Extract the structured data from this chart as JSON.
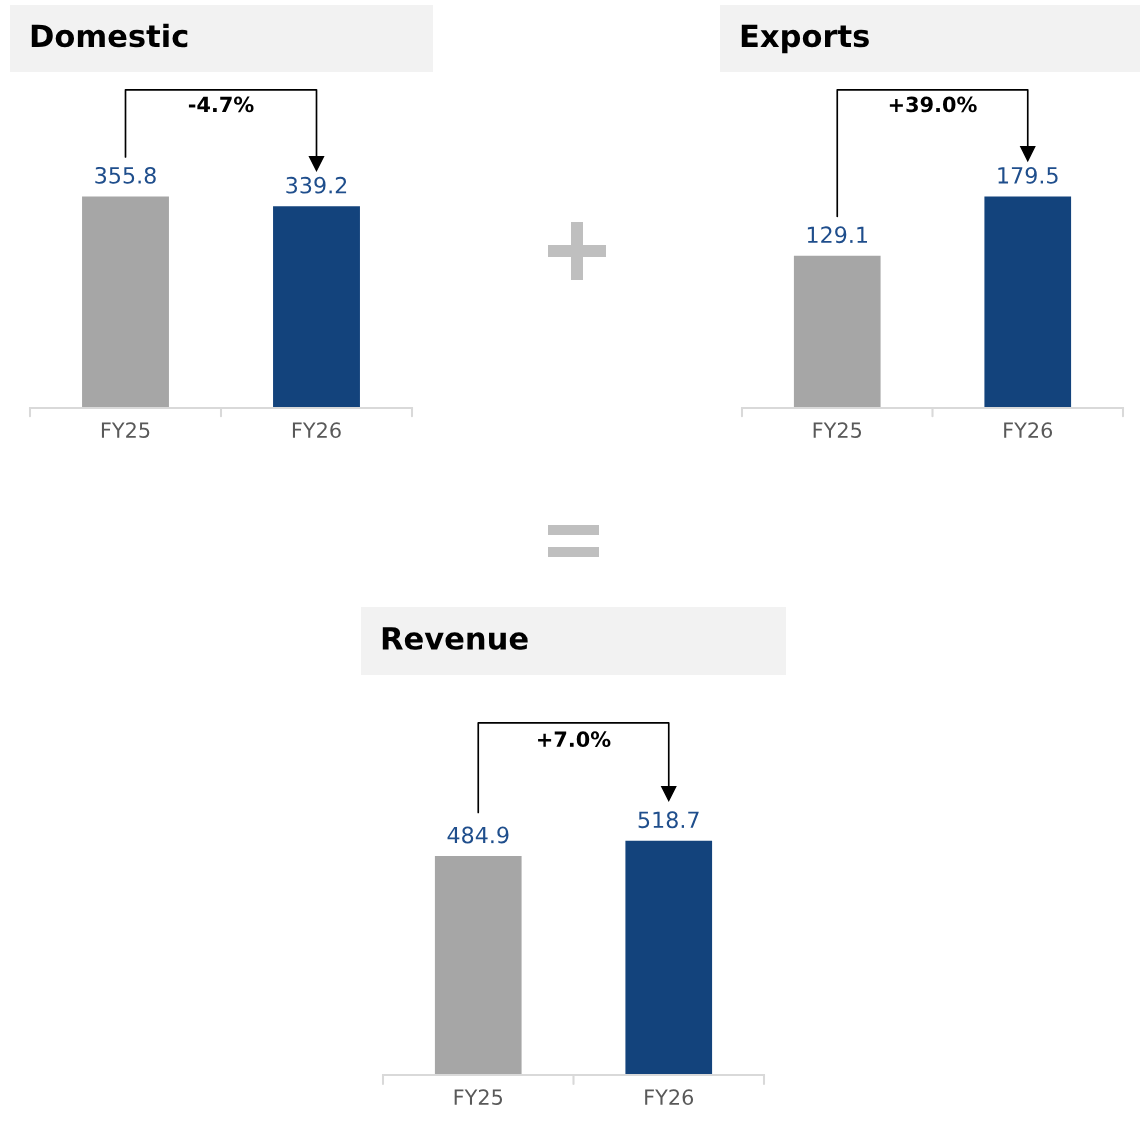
{
  "chart_data": [
    {
      "type": "bar",
      "title": "Domestic",
      "categories": [
        "FY25",
        "FY26"
      ],
      "values": [
        355.8,
        339.2
      ],
      "colors": [
        "#a6a6a6",
        "#13437c"
      ],
      "data_labels": true,
      "annotations": [
        "-4.7%"
      ]
    },
    {
      "type": "bar",
      "title": "Exports",
      "categories": [
        "FY25",
        "FY26"
      ],
      "values": [
        129.1,
        179.5
      ],
      "colors": [
        "#a6a6a6",
        "#13437c"
      ],
      "data_labels": true,
      "annotations": [
        "+39.0%"
      ]
    },
    {
      "type": "bar",
      "title": "Revenue",
      "categories": [
        "FY25",
        "FY26"
      ],
      "values": [
        484.9,
        518.7
      ],
      "colors": [
        "#a6a6a6",
        "#13437c"
      ],
      "data_labels": true,
      "annotations": [
        "+7.0%"
      ]
    }
  ]
}
